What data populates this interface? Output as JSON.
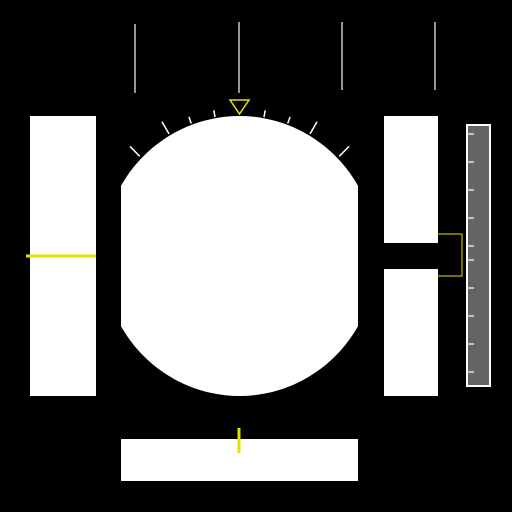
{
  "display": {
    "type": "primary-flight-display",
    "background_color": "#000000"
  },
  "colors": {
    "panel": "#FFFFFF",
    "symbology": "#E8E000",
    "tick": "#FFFFFF",
    "vsi_tape": "#646464",
    "vsi_tick": "#FFFFFF",
    "top_line": "#C8C8C8",
    "scale_line": "#FFFFFF"
  },
  "icons": {
    "bank_pointer": "triangle-down-icon",
    "speed_pointer": "triangle-left-icon",
    "heading_pointer": "vertical-bar-icon"
  },
  "instruments": {
    "attitude_indicator": {
      "visible": true
    },
    "airspeed_tape": {
      "visible": true
    },
    "altitude_tape": {
      "visible": true
    },
    "vertical_speed_indicator": {
      "visible": true
    },
    "heading_tape": {
      "visible": true
    }
  }
}
